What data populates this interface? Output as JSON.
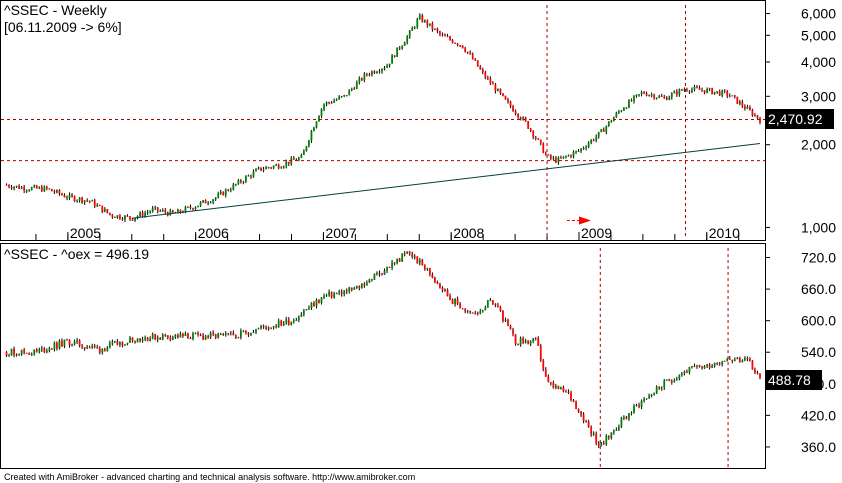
{
  "chart_data": [
    {
      "type": "candlestick",
      "title": "^SSEC - Weekly",
      "subtitle": "[06.11.2009 -> 6%]",
      "y_scale": "log",
      "ylim": [
        900,
        6500
      ],
      "yticks": [
        "6,000",
        "5,000",
        "4,000",
        "3,000",
        "2,000",
        "1,000"
      ],
      "ytick_values": [
        6000,
        5000,
        4000,
        3000,
        2000,
        1000
      ],
      "xticks": [
        "2005",
        "2006",
        "2007",
        "2008",
        "2009",
        "2010"
      ],
      "last_value": "2,470.92",
      "x_range": [
        "2004-07",
        "2010-06"
      ],
      "series": {
        "dates": [
          "2004-07",
          "2004-09",
          "2004-11",
          "2005-01",
          "2005-03",
          "2005-05",
          "2005-07",
          "2005-09",
          "2005-11",
          "2006-01",
          "2006-03",
          "2006-05",
          "2006-07",
          "2006-09",
          "2006-11",
          "2007-01",
          "2007-03",
          "2007-05",
          "2007-07",
          "2007-09",
          "2007-10",
          "2007-12",
          "2008-02",
          "2008-04",
          "2008-06",
          "2008-08",
          "2008-10",
          "2008-11",
          "2009-01",
          "2009-03",
          "2009-05",
          "2009-07",
          "2009-09",
          "2009-11",
          "2010-01",
          "2010-03",
          "2010-05",
          "2010-06"
        ],
        "close": [
          1430,
          1390,
          1380,
          1290,
          1250,
          1110,
          1080,
          1160,
          1120,
          1200,
          1290,
          1450,
          1630,
          1690,
          1800,
          2800,
          3000,
          3600,
          3900,
          5000,
          5800,
          5000,
          4600,
          3600,
          2900,
          2400,
          1800,
          1750,
          1900,
          2200,
          2700,
          3100,
          2950,
          3200,
          3150,
          3050,
          2650,
          2471
        ]
      },
      "trendline": {
        "from": [
          "2005-07",
          1080
        ],
        "to": [
          "2010-06",
          2020
        ]
      },
      "horizontal_levels": [
        2470,
        1750
      ],
      "vertical_markers": [
        "2008-10",
        "2009-11"
      ],
      "markers": [
        {
          "type": "arrow-right",
          "date": "2009-01",
          "value": 1060,
          "color": "#ff0000"
        }
      ]
    },
    {
      "type": "candlestick",
      "title": "^SSEC - ^oex = 496.19",
      "y_scale": "linear",
      "ylim": [
        320,
        740
      ],
      "yticks": [
        "720.0",
        "660.0",
        "600.0",
        "540.0",
        "480.0",
        "420.0",
        "360.0"
      ],
      "ytick_values": [
        720,
        660,
        600,
        540,
        480,
        420,
        360
      ],
      "last_value": "488.78",
      "x_range": [
        "2004-07",
        "2010-06"
      ],
      "series": {
        "dates": [
          "2004-07",
          "2004-10",
          "2005-01",
          "2005-04",
          "2005-07",
          "2005-10",
          "2006-01",
          "2006-04",
          "2006-07",
          "2006-10",
          "2007-01",
          "2007-04",
          "2007-07",
          "2007-09",
          "2007-11",
          "2008-01",
          "2008-03",
          "2008-05",
          "2008-07",
          "2008-09",
          "2008-10",
          "2008-12",
          "2009-01",
          "2009-03",
          "2009-05",
          "2009-07",
          "2009-09",
          "2009-11",
          "2010-01",
          "2010-03",
          "2010-05",
          "2010-06"
        ],
        "close": [
          540,
          540,
          560,
          545,
          565,
          570,
          570,
          570,
          585,
          600,
          645,
          660,
          700,
          730,
          690,
          640,
          610,
          640,
          560,
          560,
          480,
          460,
          430,
          360,
          410,
          450,
          480,
          505,
          515,
          530,
          520,
          489
        ]
      },
      "vertical_markers": [
        "2009-03",
        "2010-03"
      ]
    }
  ],
  "footer": "Created with AmiBroker - advanced charting and technical analysis software. http://www.amibroker.com",
  "colors": {
    "up": "#008000",
    "down": "#ff0000",
    "wick": "#000000",
    "trendline": "#004040",
    "dashed": "#b00000",
    "badge_bg": "#000000"
  }
}
